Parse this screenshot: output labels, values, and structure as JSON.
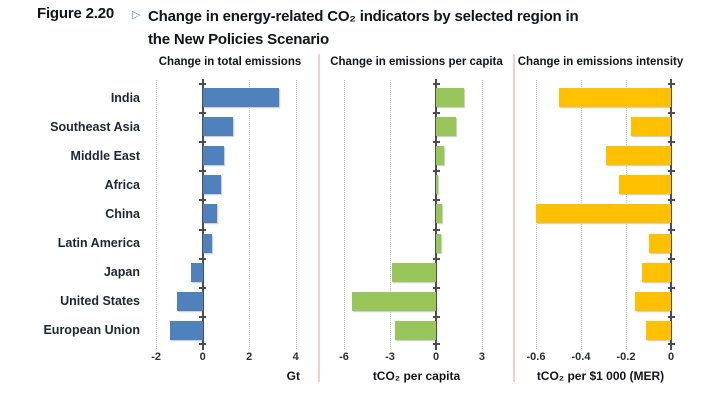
{
  "figure": {
    "label": "Figure 2.20",
    "marker": "▷",
    "title_line1": "Change in energy-related CO₂ indicators by selected region in",
    "title_line2": "the New Policies Scenario"
  },
  "chart_data": {
    "type": "bar",
    "orientation": "horizontal",
    "grid": "dotted-vertical",
    "legend": "none",
    "categories": [
      "India",
      "Southeast Asia",
      "Middle East",
      "Africa",
      "China",
      "Latin America",
      "Japan",
      "United States",
      "European Union"
    ],
    "panels": [
      {
        "title": "Change in total emissions",
        "unit": "Gt",
        "color": "#4f81bd",
        "xlim": [
          -2.35,
          4.7
        ],
        "ticks": [
          {
            "v": -2,
            "label": "-2"
          },
          {
            "v": 0,
            "label": "0"
          },
          {
            "v": 2,
            "label": "2"
          },
          {
            "v": 4,
            "label": "4"
          }
        ],
        "values": [
          3.3,
          1.3,
          0.9,
          0.8,
          0.6,
          0.4,
          -0.5,
          -1.1,
          -1.4
        ],
        "unit_align": "right"
      },
      {
        "title": "Change in emissions per capita",
        "unit": "tCO₂ per capita",
        "color": "#98c65a",
        "xlim": [
          -7.24,
          4.7
        ],
        "ticks": [
          {
            "v": -6,
            "label": "-6"
          },
          {
            "v": -3,
            "label": "-3"
          },
          {
            "v": 0,
            "label": "0"
          },
          {
            "v": 3,
            "label": "3"
          }
        ],
        "values": [
          1.8,
          1.3,
          0.5,
          0.1,
          0.4,
          0.3,
          -2.9,
          -5.5,
          -2.7
        ],
        "unit_align": "center"
      },
      {
        "title": "Change in emissions intensity",
        "unit": "tCO₂ per $1 000 (MER)",
        "color": "#ffc000",
        "xlim": [
          -0.671,
          0.0444
        ],
        "ticks": [
          {
            "v": -0.6,
            "label": "-0.6"
          },
          {
            "v": -0.4,
            "label": "-0.4"
          },
          {
            "v": -0.2,
            "label": "-0.2"
          },
          {
            "v": 0,
            "label": "0"
          }
        ],
        "values": [
          -0.5,
          -0.18,
          -0.29,
          -0.23,
          -0.6,
          -0.1,
          -0.13,
          -0.16,
          -0.11
        ],
        "unit_align": "center"
      }
    ]
  },
  "colors": {
    "bar_blue": "#4f81bd",
    "bar_green": "#98c65a",
    "bar_yellow": "#ffc000",
    "divider_pink": "#f2cfce",
    "axis": "#4d4d4d",
    "gridline": "#c6c6c6",
    "text_dark": "#10141c",
    "marker_blue": "#36a9e1"
  }
}
